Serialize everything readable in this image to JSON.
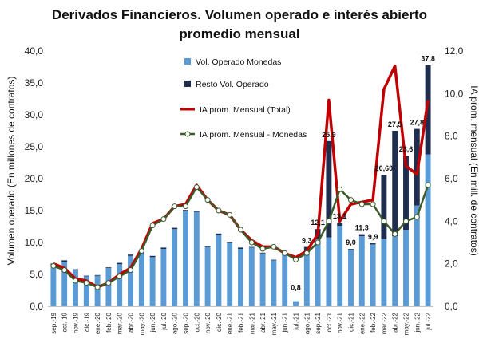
{
  "chart_data": {
    "type": "bar",
    "title_line1": "Derivados Financieros. Volumen operado e interés abierto",
    "title_line2": "promedio mensual",
    "ylabel_left": "Volumen operado (En millones de contratos)",
    "ylabel_right": "IA prom. mensual (En mill. de contratos)",
    "ylim_left": [
      0,
      40
    ],
    "yticks_left": [
      "0,0",
      "5,0",
      "10,0",
      "15,0",
      "20,0",
      "25,0",
      "30,0",
      "35,0",
      "40,0"
    ],
    "ylim_right": [
      0,
      12
    ],
    "yticks_right": [
      "0,0",
      "2,0",
      "4,0",
      "6,0",
      "8,0",
      "10,0",
      "12,0"
    ],
    "categories": [
      "sep.-19",
      "oct.-19",
      "nov.-19",
      "dic.-19",
      "ene.-20",
      "feb.-20",
      "mar.-20",
      "abr.-20",
      "may.-20",
      "jun.-20",
      "jul.-20",
      "ago.-20",
      "sep.-20",
      "oct.-20",
      "nov.-20",
      "dic.-20",
      "ene.-21",
      "feb.-21",
      "mar.-21",
      "abr.-21",
      "may.-21",
      "jun.-21",
      "jul.-21",
      "ago.-21",
      "sep.-21",
      "oct.-21",
      "nov.-21",
      "dic.-21",
      "ene.-22",
      "feb.-22",
      "mar.-22",
      "abr.-22",
      "may.-22",
      "jun.-22",
      "jul.-22"
    ],
    "series": [
      {
        "name": "Vol. Operado Monedas",
        "kind": "bar",
        "color": "#5b9bd5",
        "values": [
          6.5,
          7.0,
          5.7,
          4.7,
          4.8,
          6.0,
          6.6,
          7.9,
          8.3,
          7.7,
          9.0,
          12.1,
          14.9,
          14.8,
          9.3,
          11.2,
          10.0,
          9.0,
          9.2,
          8.3,
          7.2,
          8.0,
          0.8,
          8.5,
          10.5,
          10.8,
          12.6,
          8.9,
          11.0,
          9.7,
          10.5,
          11.0,
          12.0,
          15.8,
          23.8
        ]
      },
      {
        "name": "Resto Vol. Operado",
        "kind": "bar",
        "color": "#1f2d4e",
        "values": [
          0.2,
          0.2,
          0.1,
          0.1,
          0.1,
          0.1,
          0.2,
          0.2,
          0.2,
          0.2,
          0.2,
          0.2,
          0.2,
          0.2,
          0.1,
          0.2,
          0.1,
          0.2,
          0.1,
          0.1,
          0.1,
          0.1,
          0.0,
          0.8,
          1.6,
          15.1,
          0.5,
          0.1,
          0.3,
          0.2,
          10.1,
          16.5,
          11.6,
          12.0,
          14.0
        ]
      },
      {
        "name": "IA prom. Mensual (Total)",
        "kind": "line",
        "color": "#c00000",
        "values": [
          2.0,
          1.8,
          1.3,
          1.2,
          0.9,
          1.1,
          1.5,
          1.8,
          2.7,
          3.9,
          4.1,
          4.7,
          4.8,
          5.7,
          5.0,
          4.5,
          4.3,
          3.6,
          3.1,
          2.8,
          2.8,
          2.5,
          2.3,
          2.6,
          3.4,
          9.7,
          4.0,
          4.8,
          4.9,
          5.0,
          10.2,
          11.3,
          6.6,
          6.2,
          9.7
        ]
      },
      {
        "name": "IA prom. Mensual - Monedas",
        "kind": "line",
        "color": "#3d5a2a",
        "values": [
          1.9,
          1.7,
          1.2,
          1.1,
          0.9,
          1.1,
          1.4,
          1.7,
          2.6,
          3.8,
          4.1,
          4.7,
          4.7,
          5.6,
          5.0,
          4.5,
          4.3,
          3.6,
          3.0,
          2.7,
          2.8,
          2.5,
          2.2,
          2.5,
          3.0,
          4.0,
          5.5,
          5.0,
          4.8,
          4.8,
          4.0,
          3.4,
          4.0,
          4.2,
          5.7
        ]
      }
    ],
    "data_labels": [
      {
        "index": 22,
        "text": "0,8"
      },
      {
        "index": 23,
        "text": "9,3"
      },
      {
        "index": 24,
        "text": "12,1"
      },
      {
        "index": 25,
        "text": "25,9"
      },
      {
        "index": 26,
        "text": "13,1"
      },
      {
        "index": 27,
        "text": "9,0"
      },
      {
        "index": 28,
        "text": "11,3"
      },
      {
        "index": 29,
        "text": "9,9"
      },
      {
        "index": 30,
        "text": "20,60"
      },
      {
        "index": 31,
        "text": "27,5"
      },
      {
        "index": 32,
        "text": "23,6"
      },
      {
        "index": 33,
        "text": "27,8"
      },
      {
        "index": 34,
        "text": "37,8"
      }
    ],
    "legend_position": "top-center",
    "grid": false
  }
}
